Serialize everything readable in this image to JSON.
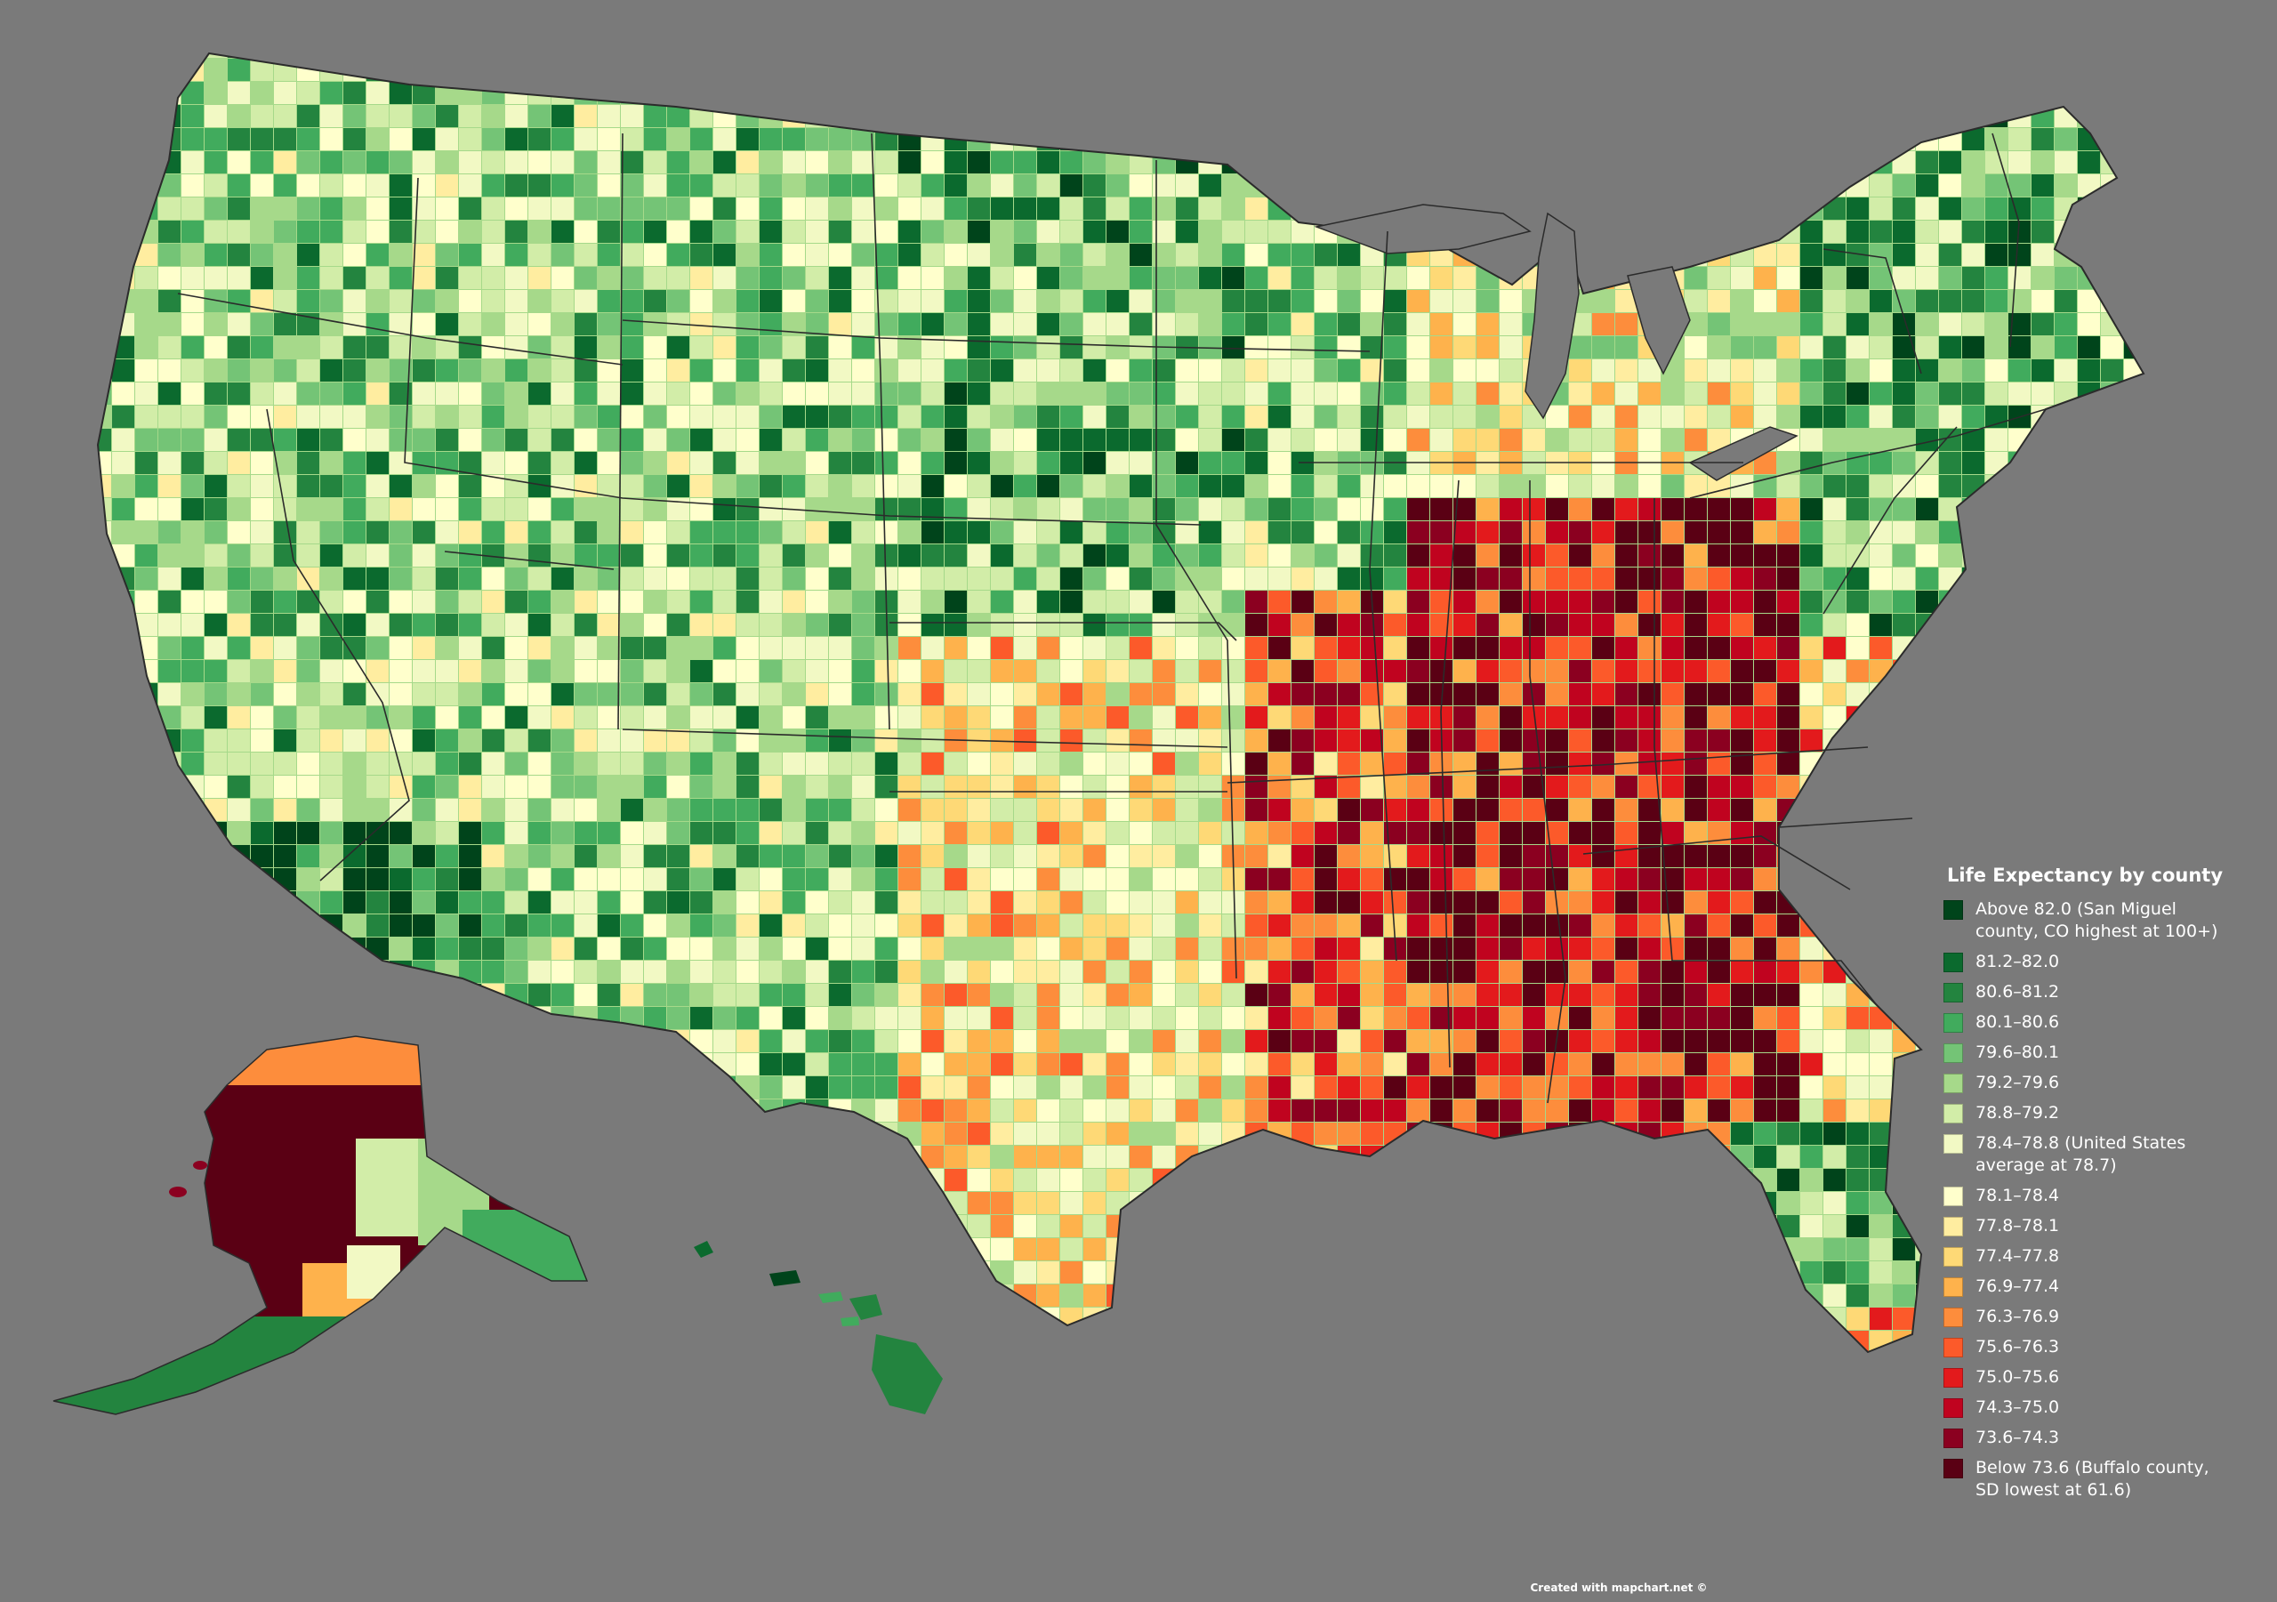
{
  "legend": {
    "title": "Life Expectancy by county",
    "items": [
      {
        "label": "Above 82.0 (San Miguel county, CO highest at 100+)",
        "color": "#00441b"
      },
      {
        "label": "81.2–82.0",
        "color": "#0b6a2e"
      },
      {
        "label": "80.6–81.2",
        "color": "#23843f"
      },
      {
        "label": "80.1–80.6",
        "color": "#41ab5d"
      },
      {
        "label": "79.6–80.1",
        "color": "#74c476"
      },
      {
        "label": "79.2–79.6",
        "color": "#a6d98a"
      },
      {
        "label": "78.8–79.2",
        "color": "#d2eda8"
      },
      {
        "label": "78.4–78.8 (United States average at 78.7)",
        "color": "#f2f9c4"
      },
      {
        "label": "78.1–78.4",
        "color": "#ffffcc"
      },
      {
        "label": "77.8–78.1",
        "color": "#ffeda0"
      },
      {
        "label": "77.4–77.8",
        "color": "#fed976"
      },
      {
        "label": "76.9–77.4",
        "color": "#feb24c"
      },
      {
        "label": "76.3–76.9",
        "color": "#fd8d3c"
      },
      {
        "label": "75.6–76.3",
        "color": "#fc5a2a"
      },
      {
        "label": "75.0–75.6",
        "color": "#e31a1c"
      },
      {
        "label": "74.3–75.0",
        "color": "#c0031f"
      },
      {
        "label": "73.6–74.3",
        "color": "#8b0020"
      },
      {
        "label": "Below 73.6 (Buffalo county, SD lowest at 61.6)",
        "color": "#5a0014"
      }
    ]
  },
  "credit": "Created with mapchart.net ©",
  "colors": {
    "background": "#7a7a7a",
    "state_border": "#2b2b2b"
  }
}
